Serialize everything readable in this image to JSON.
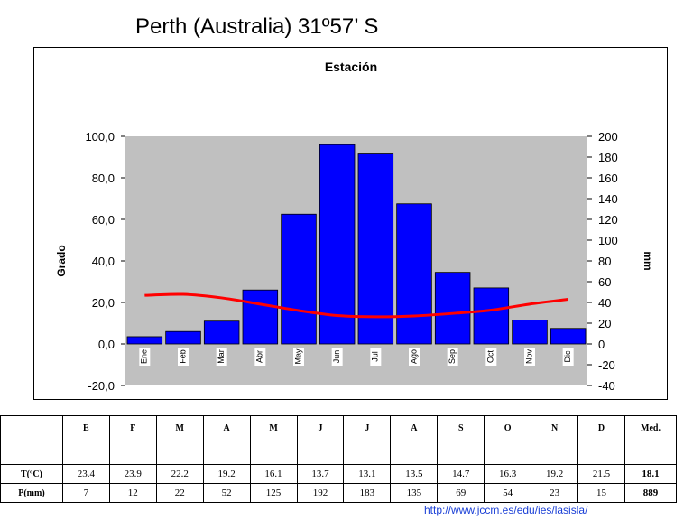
{
  "page_title": "Perth (Australia)  31º57’ S",
  "source": "http://www.jccm.es/edu/ies/lasisla/",
  "chart_data": {
    "type": "bar",
    "title": "Estación",
    "ylabel": "Grado",
    "y2label": "mm",
    "categories": [
      "Ene",
      "Feb",
      "Mar",
      "Abr",
      "May",
      "Jun",
      "Jul",
      "Ago",
      "Sep",
      "Oct",
      "Nov",
      "Dic"
    ],
    "ylim": [
      -20,
      100
    ],
    "y2lim": [
      -40,
      200
    ],
    "yticks": [
      "100,0",
      "80,0",
      "60,0",
      "40,0",
      "20,0",
      "0,0",
      "-20,0"
    ],
    "y2ticks": [
      "200",
      "180",
      "160",
      "140",
      "120",
      "100",
      "80",
      "60",
      "40",
      "20",
      "0",
      "-20",
      "-40"
    ],
    "series": [
      {
        "name": "P(mm)",
        "type": "bar",
        "axis": "right",
        "color": "#0000ff",
        "values": [
          7,
          12,
          22,
          52,
          125,
          192,
          183,
          135,
          69,
          54,
          23,
          15
        ]
      },
      {
        "name": "T(ºC)",
        "type": "line",
        "axis": "left",
        "color": "#ff0000",
        "values": [
          23.4,
          23.9,
          22.2,
          19.2,
          16.1,
          13.7,
          13.1,
          13.5,
          14.7,
          16.3,
          19.2,
          21.5
        ]
      }
    ],
    "plot_background": "#c0c0c0"
  },
  "table": {
    "headers": [
      "E",
      "F",
      "M",
      "A",
      "M",
      "J",
      "J",
      "A",
      "S",
      "O",
      "N",
      "D",
      "Med."
    ],
    "rows": [
      {
        "label": "T(ºC)",
        "values": [
          "23.4",
          "23.9",
          "22.2",
          "19.2",
          "16.1",
          "13.7",
          "13.1",
          "13.5",
          "14.7",
          "16.3",
          "19.2",
          "21.5"
        ],
        "med": "18.1"
      },
      {
        "label": "P(mm)",
        "values": [
          "7",
          "12",
          "22",
          "52",
          "125",
          "192",
          "183",
          "135",
          "69",
          "54",
          "23",
          "15"
        ],
        "med": "889"
      }
    ]
  }
}
